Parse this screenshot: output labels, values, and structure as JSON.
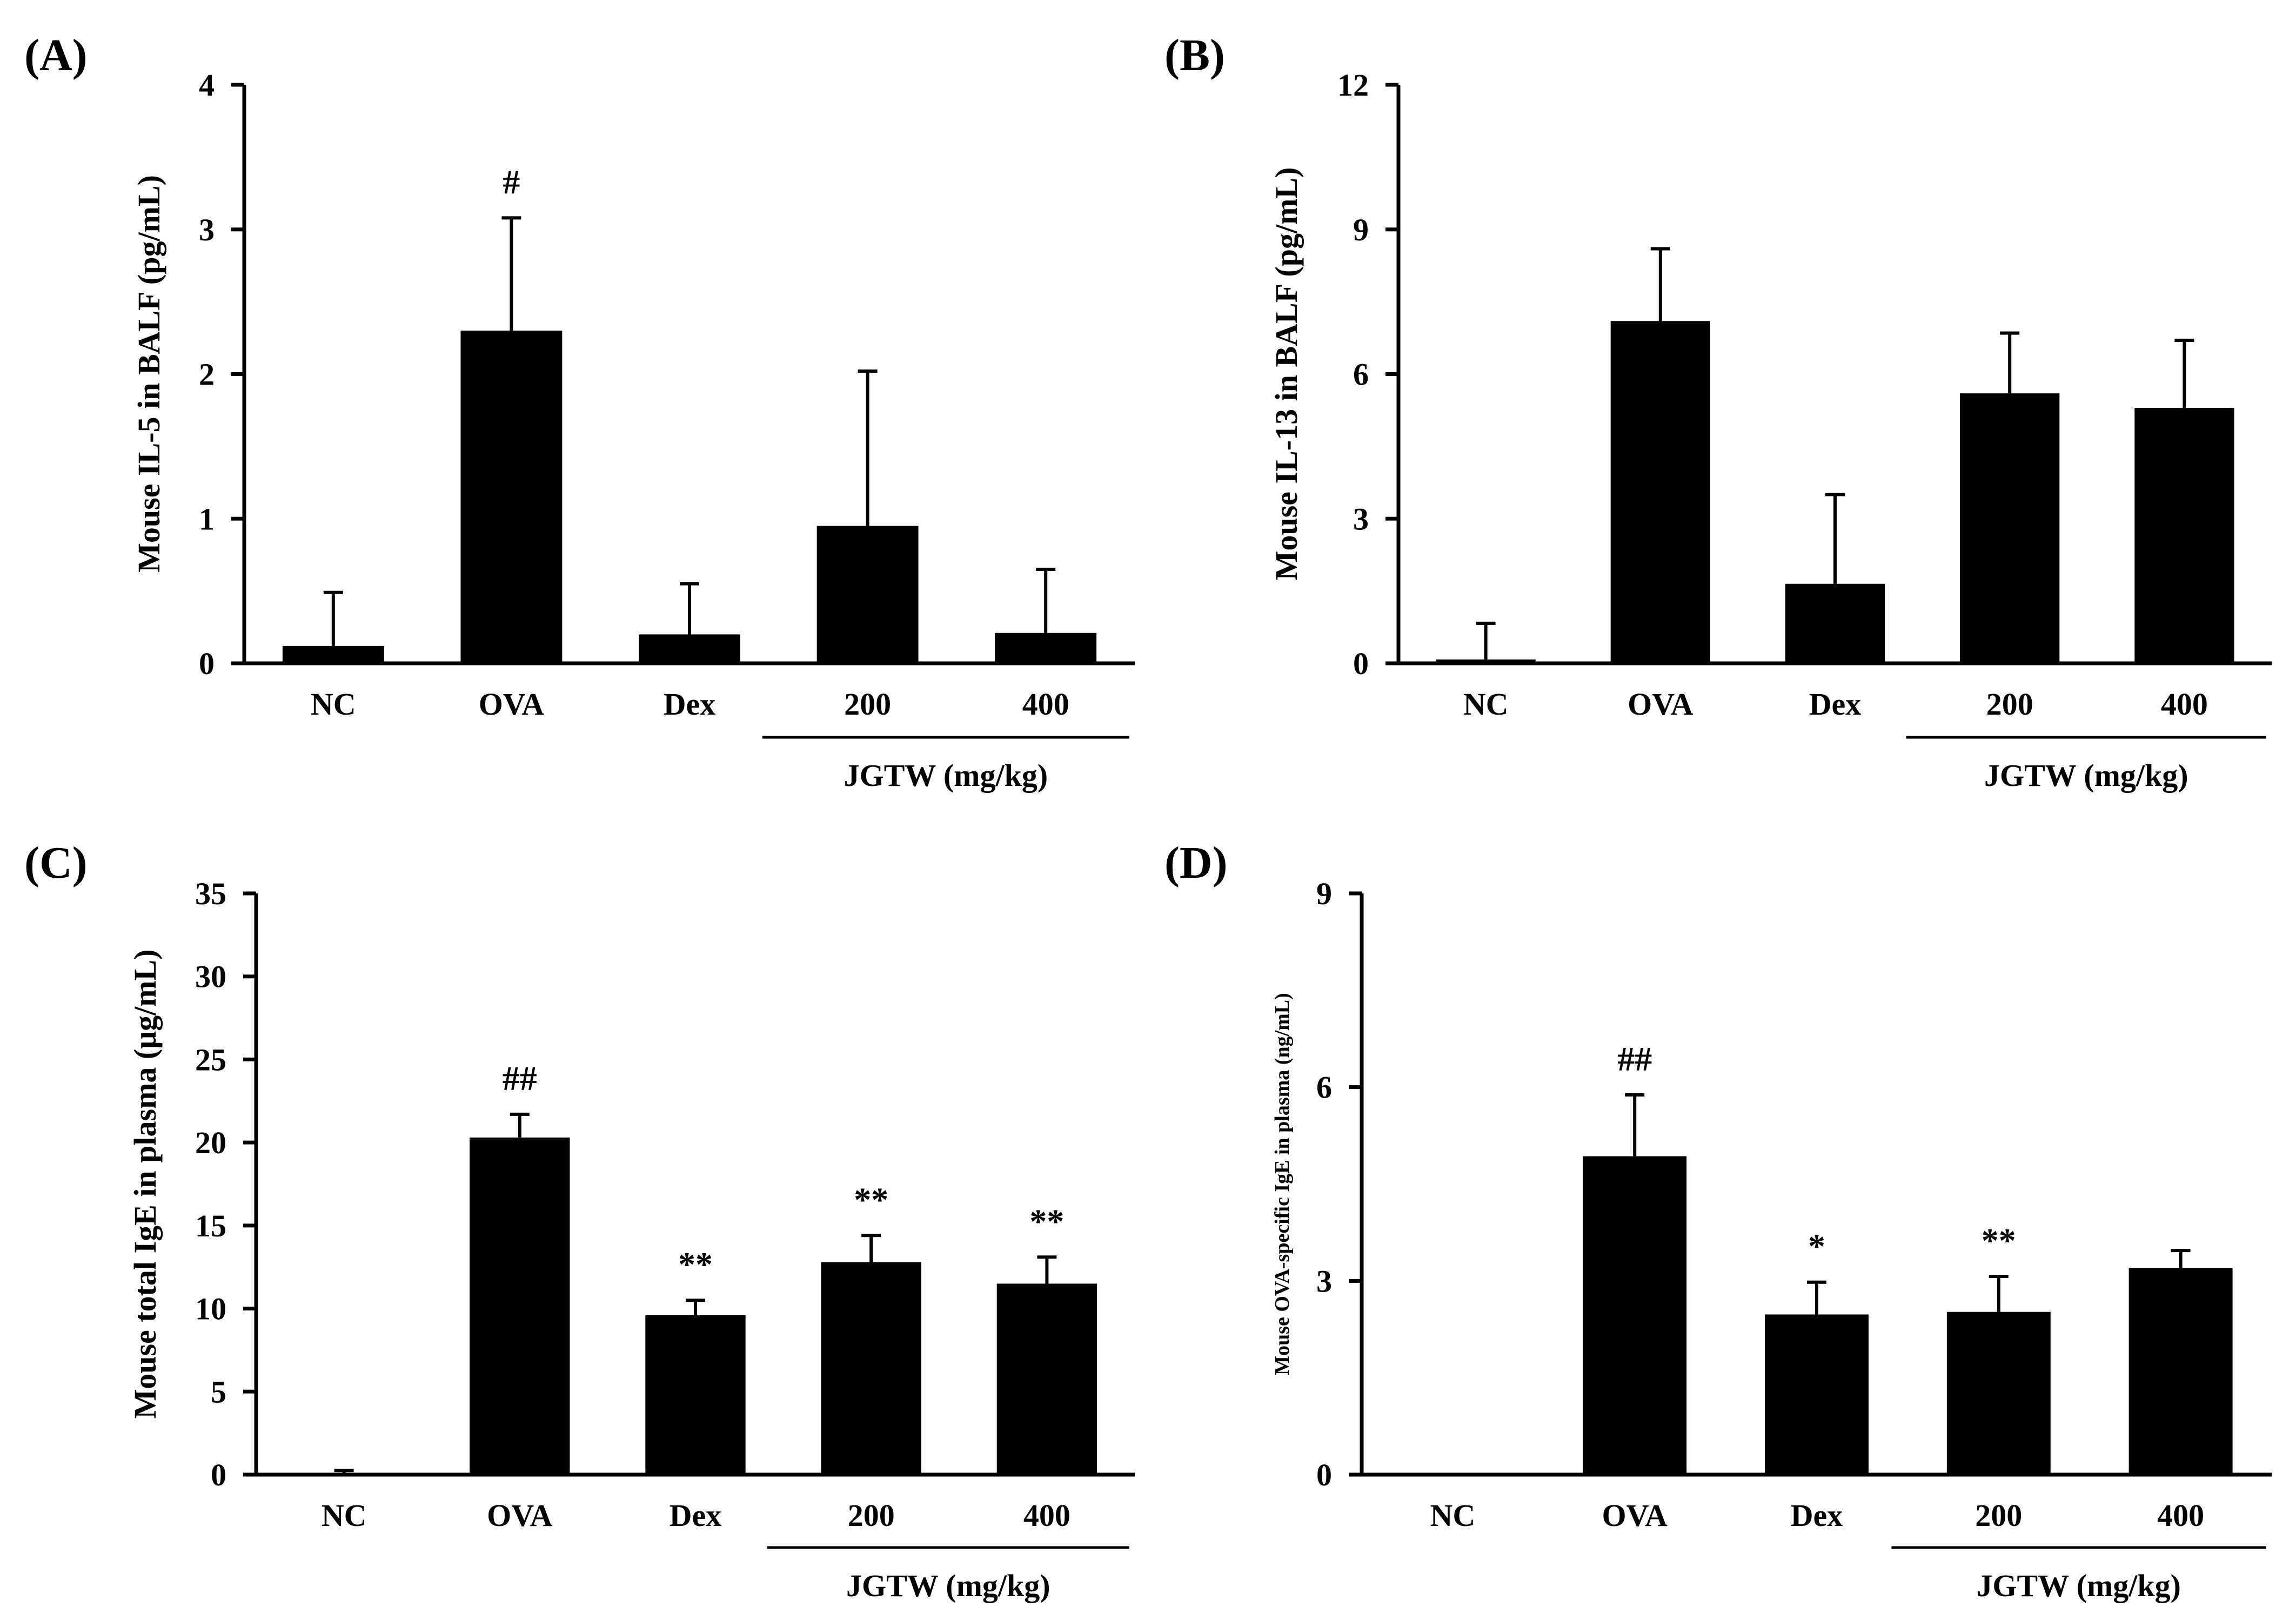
{
  "chart_data": [
    {
      "type": "bar",
      "panel_label": "(A)",
      "ylabel": "Mouse IL-5 in BALF (pg/mL)",
      "ylim": [
        0,
        4
      ],
      "yticks": [
        "0",
        "1",
        "2",
        "3",
        "4"
      ],
      "categories": [
        "NC",
        "OVA",
        "Dex",
        "200",
        "400"
      ],
      "values": [
        0.12,
        2.3,
        0.2,
        0.95,
        0.21
      ],
      "errors": [
        0.37,
        0.78,
        0.35,
        1.07,
        0.44
      ],
      "significance": [
        "",
        "#",
        "",
        "",
        ""
      ],
      "group_label": "JGTW (mg/kg)"
    },
    {
      "type": "bar",
      "panel_label": "(B)",
      "ylabel": "Mouse IL-13 in BALF (pg/mL)",
      "ylim": [
        0,
        12
      ],
      "yticks": [
        "0",
        "3",
        "6",
        "9",
        "12"
      ],
      "categories": [
        "NC",
        "OVA",
        "Dex",
        "200",
        "400"
      ],
      "values": [
        0.08,
        7.1,
        1.65,
        5.6,
        5.3
      ],
      "errors": [
        0.75,
        1.5,
        1.85,
        1.25,
        1.4
      ],
      "significance": [
        "",
        "",
        "",
        "",
        ""
      ],
      "group_label": "JGTW (mg/kg)"
    },
    {
      "type": "bar",
      "panel_label": "(C)",
      "ylabel": "Mouse total IgE in plasma (μg/mL)",
      "ylim": [
        0,
        35
      ],
      "yticks": [
        "0",
        "5",
        "10",
        "15",
        "20",
        "25",
        "30",
        "35"
      ],
      "categories": [
        "NC",
        "OVA",
        "Dex",
        "200",
        "400"
      ],
      "values": [
        0.05,
        20.3,
        9.6,
        12.8,
        11.5
      ],
      "errors": [
        0.2,
        1.4,
        0.9,
        1.6,
        1.6
      ],
      "significance": [
        "",
        "##",
        "**",
        "**",
        "**"
      ],
      "group_label": "JGTW (mg/kg)"
    },
    {
      "type": "bar",
      "panel_label": "(D)",
      "ylabel": "Mouse OVA-specific IgE in plasma (ng/mL)",
      "ylim": [
        0,
        9
      ],
      "yticks": [
        "0",
        "3",
        "6",
        "9"
      ],
      "categories": [
        "NC",
        "OVA",
        "Dex",
        "200",
        "400"
      ],
      "values": [
        0.0,
        4.93,
        2.48,
        2.52,
        3.2
      ],
      "errors": [
        0.0,
        0.95,
        0.5,
        0.55,
        0.27
      ],
      "significance": [
        "",
        "##",
        "*",
        "**",
        ""
      ],
      "group_label": "JGTW (mg/kg)"
    }
  ]
}
